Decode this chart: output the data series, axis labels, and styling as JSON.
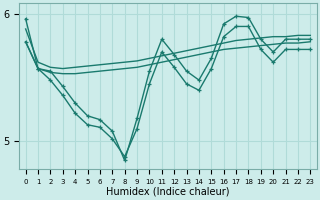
{
  "x": [
    0,
    1,
    2,
    3,
    4,
    5,
    6,
    7,
    8,
    9,
    10,
    11,
    12,
    13,
    14,
    15,
    16,
    17,
    18,
    19,
    20,
    21,
    22,
    23
  ],
  "lines": [
    {
      "y": [
        5.88,
        5.62,
        5.58,
        5.57,
        5.58,
        5.59,
        5.6,
        5.61,
        5.62,
        5.63,
        5.65,
        5.67,
        5.69,
        5.71,
        5.73,
        5.75,
        5.77,
        5.79,
        5.8,
        5.81,
        5.82,
        5.82,
        5.83,
        5.83
      ],
      "marker": false,
      "linewidth": 1.0
    },
    {
      "y": [
        5.78,
        5.57,
        5.54,
        5.53,
        5.53,
        5.54,
        5.55,
        5.56,
        5.57,
        5.58,
        5.6,
        5.62,
        5.64,
        5.66,
        5.68,
        5.7,
        5.72,
        5.73,
        5.74,
        5.75,
        5.76,
        5.77,
        5.77,
        5.78
      ],
      "marker": false,
      "linewidth": 1.0
    },
    {
      "y": [
        5.96,
        5.57,
        5.55,
        5.43,
        5.3,
        5.2,
        5.17,
        5.08,
        4.85,
        5.18,
        5.55,
        5.8,
        5.68,
        5.55,
        5.48,
        5.65,
        5.92,
        5.98,
        5.97,
        5.8,
        5.7,
        5.8,
        5.8,
        5.8
      ],
      "marker": true,
      "linewidth": 1.0
    },
    {
      "y": [
        5.78,
        5.57,
        5.48,
        5.36,
        5.22,
        5.13,
        5.11,
        5.02,
        4.88,
        5.1,
        5.45,
        5.7,
        5.58,
        5.45,
        5.4,
        5.57,
        5.82,
        5.9,
        5.9,
        5.72,
        5.62,
        5.72,
        5.72,
        5.72
      ],
      "marker": true,
      "linewidth": 1.0
    }
  ],
  "color": "#1a7a6e",
  "background": "#cdecea",
  "grid_color": "#b0dbd8",
  "xlabel": "Humidex (Indice chaleur)",
  "xlim_min": -0.5,
  "xlim_max": 23.5,
  "ylim": [
    4.78,
    6.08
  ],
  "yticks": [
    5,
    6
  ],
  "xticks": [
    0,
    1,
    2,
    3,
    4,
    5,
    6,
    7,
    8,
    9,
    10,
    11,
    12,
    13,
    14,
    15,
    16,
    17,
    18,
    19,
    20,
    21,
    22,
    23
  ]
}
